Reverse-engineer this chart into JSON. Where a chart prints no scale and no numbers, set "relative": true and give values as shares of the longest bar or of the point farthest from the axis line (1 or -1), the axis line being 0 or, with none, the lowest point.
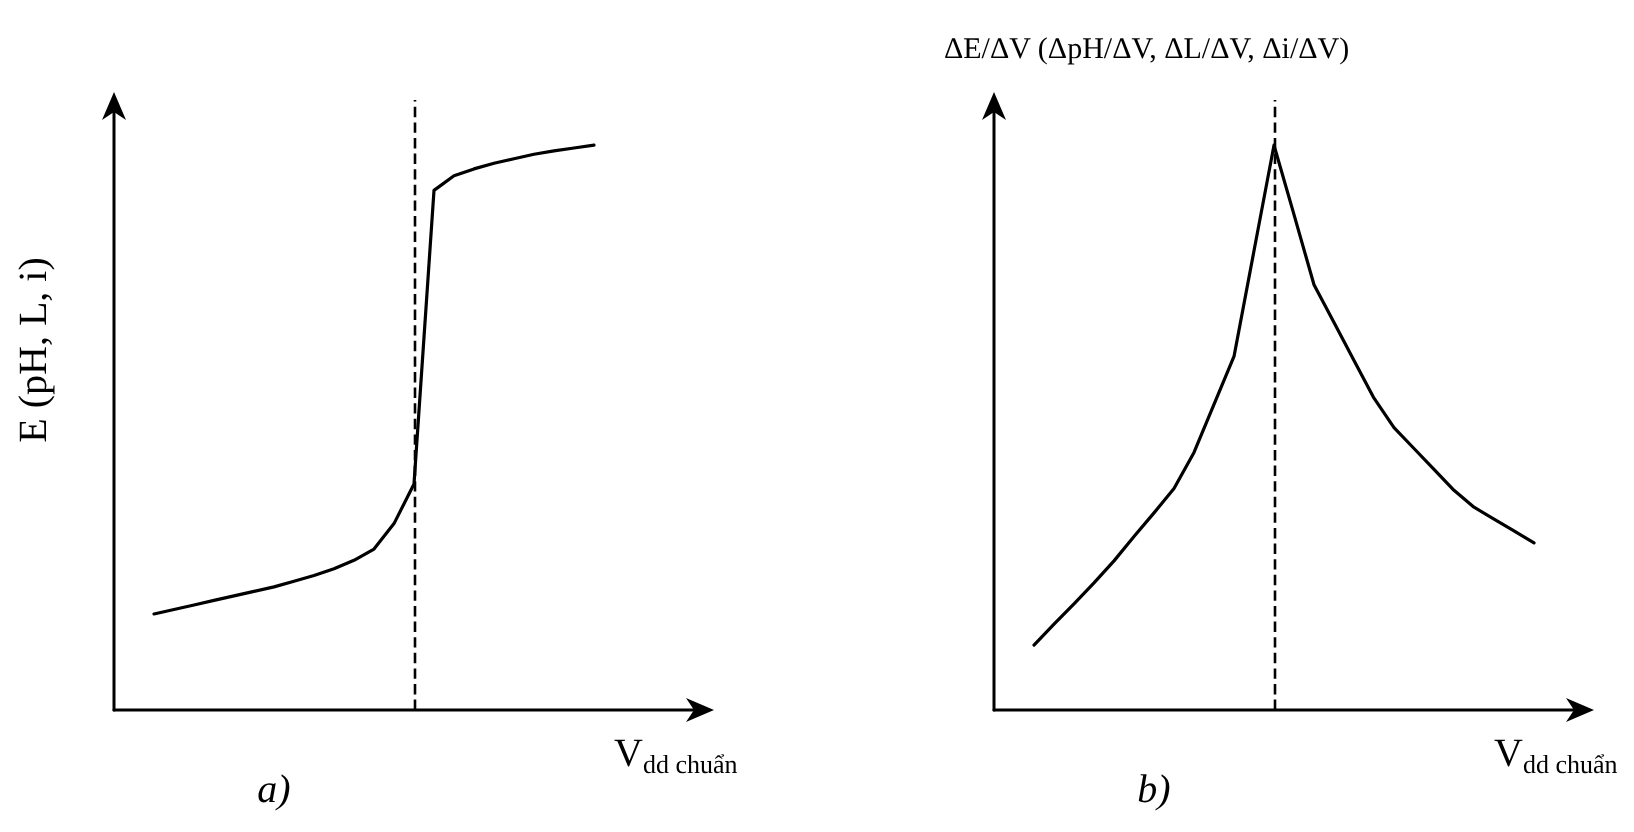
{
  "chart_data": [
    {
      "type": "line",
      "relative": true,
      "ylabel": "E (pH, L, i)",
      "xlabel": "V$_{dd chuẩn}$",
      "annotations": [
        "a)"
      ],
      "marker": "none",
      "line_style": "solid",
      "categories": [
        null,
        null,
        null,
        null,
        null,
        null,
        null,
        null,
        null,
        null,
        null,
        null,
        null,
        null,
        null,
        null,
        null,
        null,
        null,
        null,
        null,
        null,
        null,
        null,
        null,
        null,
        null,
        null,
        null,
        null
      ],
      "series": [
        {
          "color": "#000000",
          "values": [
            null,
            null,
            0.17,
            0.178,
            0.186,
            0.194,
            0.202,
            0.21,
            0.218,
            0.228,
            0.238,
            0.25,
            0.265,
            0.285,
            0.33,
            0.4,
            0.92,
            0.946,
            0.958,
            0.968,
            0.976,
            0.984,
            0.99,
            0.995,
            1,
            null,
            null,
            null,
            null,
            null
          ]
        }
      ]
    },
    {
      "type": "line",
      "relative": true,
      "ylabel": "ΔE/ΔV (ΔpH/ΔV, ΔL/ΔV, Δi/ΔV)",
      "xlabel": "V$_{dd chuẩn}$",
      "annotations": [
        "b)"
      ],
      "marker": "none",
      "line_style": "solid",
      "categories": [
        null,
        null,
        null,
        null,
        null,
        null,
        null,
        null,
        null,
        null,
        null,
        null,
        null,
        null,
        null,
        null,
        null,
        null,
        null,
        null,
        null,
        null,
        null,
        null,
        null,
        null,
        null,
        null,
        null,
        null
      ],
      "series": [
        {
          "color": "#000000",
          "values": [
            null,
            null,
            0.115,
            0.152,
            0.188,
            0.225,
            0.264,
            0.307,
            0.349,
            0.392,
            0.456,
            0.541,
            0.626,
            0.813,
            1,
            0.877,
            0.753,
            0.686,
            0.619,
            0.552,
            0.5,
            0.463,
            0.426,
            0.389,
            0.359,
            0.338,
            0.317,
            0.296,
            null,
            null
          ]
        }
      ]
    }
  ]
}
